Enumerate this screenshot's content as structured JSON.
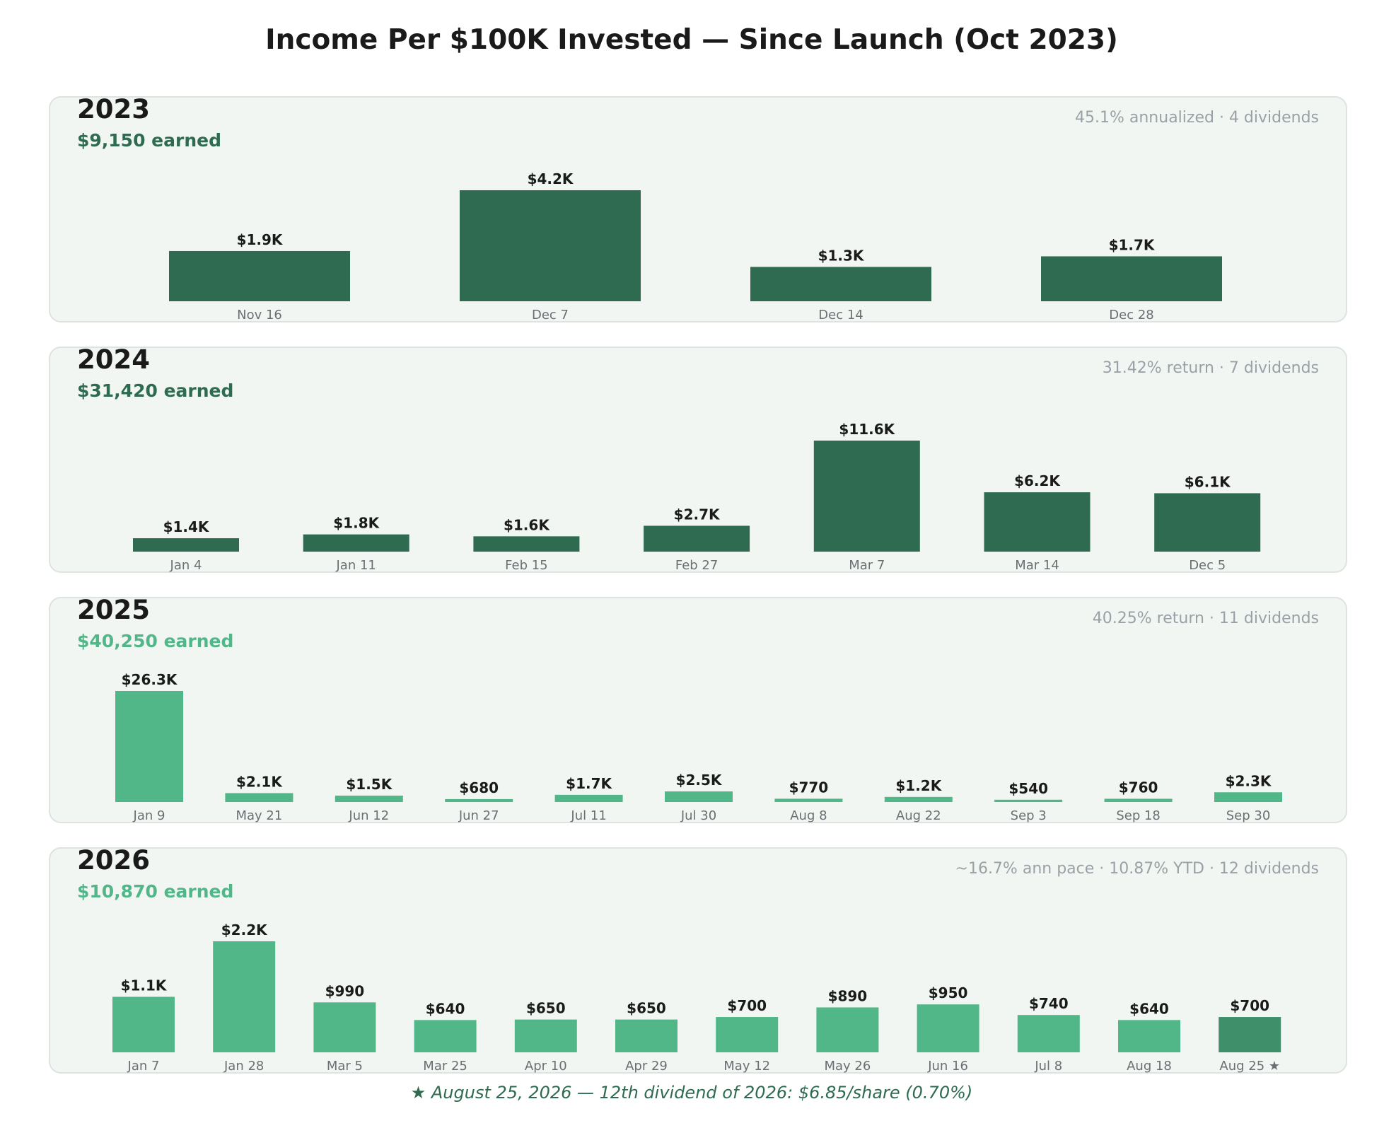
{
  "title": "Income Per $100K Invested  —  Since Launch (Oct 2023)",
  "footnote": "★ August 25, 2026  —  12th dividend of 2026: $6.85/share (0.70%)",
  "colors": {
    "dark_green": "#2e6b50",
    "light_green": "#52b788",
    "highlight_green": "#3f8f6b",
    "panel_bg": "#f2f6f3",
    "panel_border": "#dde3df",
    "stats_text": "#9aa0a6",
    "tick_text": "#6b6f73",
    "label_text": "#1a1a1a",
    "footnote_text": "#2e6b50"
  },
  "chart_data": [
    {
      "type": "bar",
      "year": "2023",
      "earned": "$9,150 earned",
      "stats": "45.1% annualized  ·  4 dividends",
      "color": "dark",
      "categories": [
        "Nov 16",
        "Dec 7",
        "Dec 14",
        "Dec 28"
      ],
      "values": [
        1900,
        4200,
        1300,
        1700
      ],
      "labels": [
        "$1.9K",
        "$4.2K",
        "$1.3K",
        "$1.7K"
      ]
    },
    {
      "type": "bar",
      "year": "2024",
      "earned": "$31,420 earned",
      "stats": "31.42% return  ·  7 dividends",
      "color": "dark",
      "categories": [
        "Jan 4",
        "Jan 11",
        "Feb 15",
        "Feb 27",
        "Mar 7",
        "Mar 14",
        "Dec 5"
      ],
      "values": [
        1400,
        1800,
        1600,
        2700,
        11600,
        6200,
        6100
      ],
      "labels": [
        "$1.4K",
        "$1.8K",
        "$1.6K",
        "$2.7K",
        "$11.6K",
        "$6.2K",
        "$6.1K"
      ]
    },
    {
      "type": "bar",
      "year": "2025",
      "earned": "$40,250 earned",
      "stats": "40.25% return  ·  11 dividends",
      "color": "light",
      "categories": [
        "Jan 9",
        "May 21",
        "Jun 12",
        "Jun 27",
        "Jul 11",
        "Jul 30",
        "Aug 8",
        "Aug 22",
        "Sep 3",
        "Sep 18",
        "Sep 30"
      ],
      "values": [
        26300,
        2100,
        1500,
        680,
        1700,
        2500,
        770,
        1200,
        540,
        760,
        2300
      ],
      "labels": [
        "$26.3K",
        "$2.1K",
        "$1.5K",
        "$680",
        "$1.7K",
        "$2.5K",
        "$770",
        "$1.2K",
        "$540",
        "$760",
        "$2.3K"
      ]
    },
    {
      "type": "bar",
      "year": "2026",
      "earned": "$10,870 earned",
      "stats": "~16.7% ann pace  ·  10.87% YTD  ·  12 dividends",
      "color": "light",
      "highlight_last": true,
      "categories": [
        "Jan 7",
        "Jan 28",
        "Mar 5",
        "Mar 25",
        "Apr 10",
        "Apr 29",
        "May 12",
        "May 26",
        "Jun 16",
        "Jul 8",
        "Aug 18",
        "Aug 25 ★"
      ],
      "values": [
        1100,
        2200,
        990,
        640,
        650,
        650,
        700,
        890,
        950,
        740,
        640,
        700
      ],
      "labels": [
        "$1.1K",
        "$2.2K",
        "$990",
        "$640",
        "$650",
        "$650",
        "$700",
        "$890",
        "$950",
        "$740",
        "$640",
        "$700"
      ]
    }
  ]
}
